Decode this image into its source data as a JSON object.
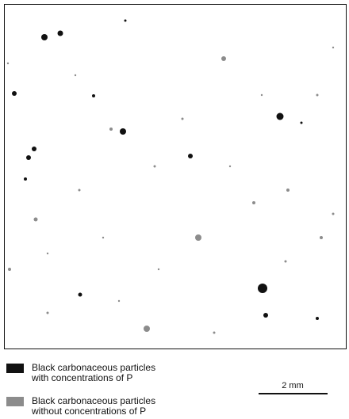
{
  "legend": [
    {
      "lines": [
        "Black carbonaceous particles",
        "with concentrations of P"
      ]
    },
    {
      "lines": [
        "Black carbonaceous particles",
        "without concentrations of P"
      ]
    }
  ],
  "scale_bar": {
    "label": "2 mm"
  }
}
